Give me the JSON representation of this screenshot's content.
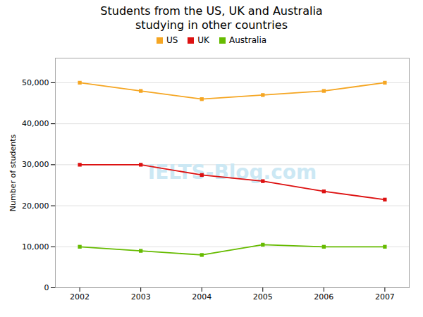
{
  "chart_data": {
    "type": "line",
    "title": "Students from the US, UK and Australia\nstudying in other countries",
    "y_label": "Number of students",
    "x": [
      2002,
      2003,
      2004,
      2005,
      2006,
      2007
    ],
    "series": [
      {
        "name": "US",
        "color": "#f5a623",
        "marker": "square",
        "values": [
          50000,
          48000,
          46000,
          47000,
          48000,
          50000
        ]
      },
      {
        "name": "UK",
        "color": "#dd1111",
        "marker": "square",
        "values": [
          30000,
          30000,
          27500,
          26000,
          23500,
          21500
        ]
      },
      {
        "name": "Australia",
        "color": "#66bb00",
        "marker": "square",
        "values": [
          10000,
          9000,
          8000,
          10500,
          10000,
          10000
        ]
      }
    ],
    "xlim": [
      2001.6,
      2007.4
    ],
    "xticks": [
      2002,
      2003,
      2004,
      2005,
      2006,
      2007
    ],
    "ylim": [
      0,
      56000
    ],
    "yticks": [
      0,
      {
        "value": 10000,
        "label": "10,000"
      },
      {
        "value": 20000,
        "label": "20,000"
      },
      {
        "value": 30000,
        "label": "30,000"
      },
      {
        "value": 40000,
        "label": "40,000"
      },
      {
        "value": 50000,
        "label": "50,000"
      }
    ],
    "grid": true,
    "legend": "top",
    "annotations": [
      {
        "text": "IELTS-Blog.com",
        "color": "#cce8f4"
      }
    ]
  }
}
